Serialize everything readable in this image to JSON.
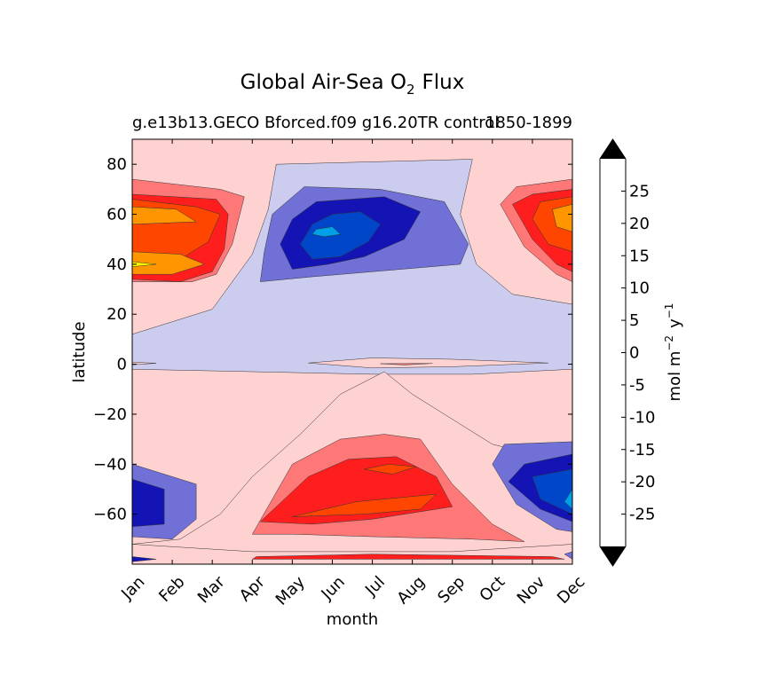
{
  "chart_data": {
    "type": "filled-contour",
    "title": "Global Air-Sea O",
    "title_subscript": "2",
    "title_suffix": "Flux",
    "subtitle_left": "g.e13b13.GECO Bforced.f09 g16.20TR control",
    "subtitle_right": "1850-1899",
    "xlabel": "month",
    "ylabel": "latitude",
    "x_ticks": [
      "Jan",
      "Feb",
      "Mar",
      "Apr",
      "May",
      "Jun",
      "Jul",
      "Aug",
      "Sep",
      "Oct",
      "Nov",
      "Dec"
    ],
    "y_ticks": [
      -60,
      -40,
      -20,
      0,
      20,
      40,
      60,
      80
    ],
    "y_tick_labels": [
      "−60",
      "−40",
      "−20",
      "0",
      "20",
      "40",
      "60",
      "80"
    ],
    "xlim": [
      0,
      11
    ],
    "ylim": [
      -80,
      90
    ],
    "colorbar": {
      "label": "mol m",
      "label_exp1": "−2",
      "label_mid": "y",
      "label_exp2": "−1",
      "levels": [
        -30,
        -25,
        -20,
        -15,
        -10,
        -5,
        0,
        5,
        10,
        15,
        20,
        25,
        30
      ],
      "tick_values": [
        -25,
        -20,
        -15,
        -10,
        -5,
        0,
        5,
        10,
        15,
        20,
        25
      ],
      "tick_labels": [
        "-25",
        "-20",
        "-15",
        "-10",
        "-5",
        "0",
        "5",
        "10",
        "15",
        "20",
        "25"
      ],
      "colors": [
        "#00ffff",
        "#00a0e6",
        "#0046c8",
        "#1414b4",
        "#7070d6",
        "#ccccee",
        "#ffd2d2",
        "#ff7878",
        "#ff1e1e",
        "#ff4600",
        "#ff9600",
        "#ffff00"
      ],
      "extend_color": "#000000"
    },
    "regions": [
      {
        "level": -5,
        "color": "#ccccee",
        "points": [
          [
            3.6,
            80
          ],
          [
            8.5,
            82
          ],
          [
            8.2,
            60
          ],
          [
            8.6,
            40
          ],
          [
            9.5,
            28
          ],
          [
            11,
            24
          ],
          [
            11,
            -2
          ],
          [
            8.5,
            -4
          ],
          [
            6,
            -4
          ],
          [
            3,
            -3
          ],
          [
            0,
            -2
          ],
          [
            0,
            2
          ],
          [
            0,
            12
          ],
          [
            2,
            22
          ],
          [
            3,
            44
          ],
          [
            3.4,
            62
          ]
        ]
      },
      {
        "level": -10,
        "color": "#7070d6",
        "points": [
          [
            4.3,
            71
          ],
          [
            6.2,
            70
          ],
          [
            7.8,
            65
          ],
          [
            8.4,
            48
          ],
          [
            8.2,
            40
          ],
          [
            6,
            37
          ],
          [
            4.5,
            35
          ],
          [
            3.2,
            33
          ],
          [
            3.3,
            45
          ],
          [
            3.5,
            60
          ]
        ]
      },
      {
        "level": -15,
        "color": "#1414b4",
        "points": [
          [
            4.6,
            65
          ],
          [
            6.3,
            67
          ],
          [
            7.2,
            61
          ],
          [
            6.8,
            50
          ],
          [
            5.8,
            43
          ],
          [
            4.9,
            40
          ],
          [
            4.0,
            38
          ],
          [
            3.7,
            48
          ],
          [
            4,
            58
          ]
        ]
      },
      {
        "level": -20,
        "color": "#0046c8",
        "points": [
          [
            5.0,
            60
          ],
          [
            5.7,
            61
          ],
          [
            6.2,
            56
          ],
          [
            5.9,
            49
          ],
          [
            5.2,
            43
          ],
          [
            4.5,
            42
          ],
          [
            4.2,
            48
          ],
          [
            4.5,
            56
          ]
        ]
      },
      {
        "level": -25,
        "color": "#00a0e6",
        "points": [
          [
            4.6,
            54
          ],
          [
            5.0,
            55
          ],
          [
            5.2,
            52
          ],
          [
            4.8,
            51
          ],
          [
            4.5,
            52
          ]
        ]
      },
      {
        "level": 5,
        "color": "#ff7878",
        "points": [
          [
            0,
            74
          ],
          [
            2.2,
            70
          ],
          [
            2.8,
            67
          ],
          [
            2.5,
            48
          ],
          [
            2.1,
            36
          ],
          [
            1.5,
            33
          ],
          [
            0,
            33
          ]
        ]
      },
      {
        "level": 10,
        "color": "#ff1e1e",
        "points": [
          [
            0,
            68
          ],
          [
            2.1,
            66
          ],
          [
            2.4,
            60
          ],
          [
            2.3,
            46
          ],
          [
            2.0,
            37
          ],
          [
            1.2,
            33
          ],
          [
            0,
            34
          ]
        ]
      },
      {
        "level": 15,
        "color": "#ff4600",
        "points": [
          [
            0,
            66
          ],
          [
            1.6,
            63
          ],
          [
            2.2,
            60
          ],
          [
            1.9,
            49
          ],
          [
            1.2,
            42
          ],
          [
            0,
            40
          ]
        ]
      },
      {
        "level": 20,
        "color": "#ff9600",
        "points": [
          [
            0,
            63
          ],
          [
            1.1,
            62
          ],
          [
            1.6,
            57
          ],
          [
            0,
            56
          ]
        ]
      },
      {
        "level": 20,
        "color": "#ff9600",
        "points": [
          [
            0,
            45
          ],
          [
            1.2,
            44
          ],
          [
            1.8,
            40
          ],
          [
            1.0,
            36
          ],
          [
            0,
            36
          ]
        ]
      },
      {
        "level": 25,
        "color": "#ffff00",
        "points": [
          [
            0,
            41
          ],
          [
            0.6,
            40
          ],
          [
            0,
            39
          ]
        ]
      },
      {
        "level": 5,
        "color": "#ff7878",
        "points": [
          [
            11,
            74
          ],
          [
            9.6,
            71
          ],
          [
            9.2,
            64
          ],
          [
            9.8,
            47
          ],
          [
            10.6,
            36
          ],
          [
            11,
            33
          ]
        ]
      },
      {
        "level": 10,
        "color": "#ff1e1e",
        "points": [
          [
            11,
            70
          ],
          [
            10.0,
            68
          ],
          [
            9.5,
            64
          ],
          [
            10.0,
            50
          ],
          [
            10.6,
            40
          ],
          [
            11,
            37
          ]
        ]
      },
      {
        "level": 15,
        "color": "#ff4600",
        "points": [
          [
            11,
            67
          ],
          [
            10.2,
            65
          ],
          [
            10.0,
            58
          ],
          [
            10.4,
            48
          ],
          [
            11,
            45
          ]
        ]
      },
      {
        "level": 20,
        "color": "#ff9600",
        "points": [
          [
            11,
            64
          ],
          [
            10.5,
            62
          ],
          [
            10.6,
            55
          ],
          [
            11,
            53
          ]
        ]
      },
      {
        "level": 0,
        "color": "#ffd2d2",
        "points": [
          [
            0,
            -72
          ],
          [
            3,
            -75
          ],
          [
            8,
            -75
          ],
          [
            11,
            -72
          ],
          [
            11,
            -40
          ],
          [
            9,
            -32
          ],
          [
            7,
            -12
          ],
          [
            6.3,
            -3
          ],
          [
            5.2,
            -12
          ],
          [
            4.2,
            -28
          ],
          [
            3,
            -45
          ],
          [
            2.2,
            -60
          ],
          [
            1.2,
            -70
          ],
          [
            0,
            -72
          ]
        ]
      },
      {
        "level": 5,
        "color": "#ff7878",
        "points": [
          [
            3.0,
            -68
          ],
          [
            4.0,
            -40
          ],
          [
            5.2,
            -30
          ],
          [
            6.3,
            -28
          ],
          [
            7.2,
            -30
          ],
          [
            8.0,
            -48
          ],
          [
            9.0,
            -64
          ],
          [
            9.8,
            -71
          ],
          [
            8.5,
            -70
          ],
          [
            6,
            -69
          ],
          [
            4,
            -68
          ]
        ]
      },
      {
        "level": 10,
        "color": "#ff1e1e",
        "points": [
          [
            3.2,
            -63
          ],
          [
            4.4,
            -45
          ],
          [
            5.4,
            -38
          ],
          [
            6.6,
            -37
          ],
          [
            7.6,
            -45
          ],
          [
            8.0,
            -57
          ],
          [
            6,
            -62
          ],
          [
            4.5,
            -64
          ]
        ]
      },
      {
        "level": 15,
        "color": "#ff4600",
        "points": [
          [
            4.0,
            -61
          ],
          [
            5.6,
            -55
          ],
          [
            7.6,
            -52
          ],
          [
            7.2,
            -58
          ],
          [
            5.8,
            -60
          ]
        ]
      },
      {
        "level": 15,
        "color": "#ff4600",
        "points": [
          [
            5.8,
            -42
          ],
          [
            6.4,
            -40
          ],
          [
            7.1,
            -41
          ],
          [
            6.5,
            -44
          ]
        ]
      },
      {
        "level": -10,
        "color": "#7070d6",
        "points": [
          [
            0,
            -40
          ],
          [
            1.6,
            -48
          ],
          [
            1.6,
            -62
          ],
          [
            1.0,
            -70
          ],
          [
            0,
            -69
          ]
        ]
      },
      {
        "level": -15,
        "color": "#1414b4",
        "points": [
          [
            0,
            -46
          ],
          [
            0.8,
            -50
          ],
          [
            0.8,
            -64
          ],
          [
            0,
            -65
          ]
        ]
      },
      {
        "level": -10,
        "color": "#7070d6",
        "points": [
          [
            11,
            -31
          ],
          [
            9.3,
            -32
          ],
          [
            9.0,
            -40
          ],
          [
            9.6,
            -56
          ],
          [
            10.6,
            -66
          ],
          [
            11,
            -67
          ]
        ]
      },
      {
        "level": -15,
        "color": "#1414b4",
        "points": [
          [
            11,
            -36
          ],
          [
            9.8,
            -40
          ],
          [
            9.4,
            -47
          ],
          [
            10.2,
            -58
          ],
          [
            11,
            -63
          ]
        ]
      },
      {
        "level": -20,
        "color": "#0046c8",
        "points": [
          [
            11,
            -42
          ],
          [
            10.0,
            -45
          ],
          [
            10.2,
            -54
          ],
          [
            11,
            -60
          ]
        ]
      },
      {
        "level": -25,
        "color": "#00a0e6",
        "points": [
          [
            11,
            -50
          ],
          [
            10.8,
            -55
          ],
          [
            11,
            -58
          ]
        ]
      },
      {
        "level": 0,
        "color": "#ffd2d2",
        "points": [
          [
            4.4,
            0.5
          ],
          [
            6,
            2.5
          ],
          [
            8,
            2
          ],
          [
            10.4,
            0.5
          ],
          [
            8,
            -1
          ],
          [
            6,
            -1.5
          ]
        ]
      },
      {
        "level": 0,
        "color": "#ffd2d2",
        "points": [
          [
            0,
            0.8
          ],
          [
            0.6,
            0.4
          ],
          [
            0,
            -0.2
          ]
        ]
      },
      {
        "level": 5,
        "color": "#ff7878",
        "points": [
          [
            6.2,
            0.2
          ],
          [
            7.5,
            0.3
          ],
          [
            6.8,
            -0.3
          ]
        ]
      },
      {
        "level": 10,
        "color": "#ff1e1e",
        "points": [
          [
            3.1,
            -77
          ],
          [
            6,
            -76
          ],
          [
            10.5,
            -77
          ],
          [
            10.8,
            -78
          ],
          [
            3,
            -78
          ]
        ]
      },
      {
        "level": -15,
        "color": "#1414b4",
        "points": [
          [
            0,
            -77
          ],
          [
            0.6,
            -78
          ],
          [
            0,
            -79
          ]
        ]
      },
      {
        "level": -10,
        "color": "#7070d6",
        "points": [
          [
            10.8,
            -76
          ],
          [
            11,
            -75
          ],
          [
            11,
            -78
          ]
        ]
      }
    ]
  }
}
